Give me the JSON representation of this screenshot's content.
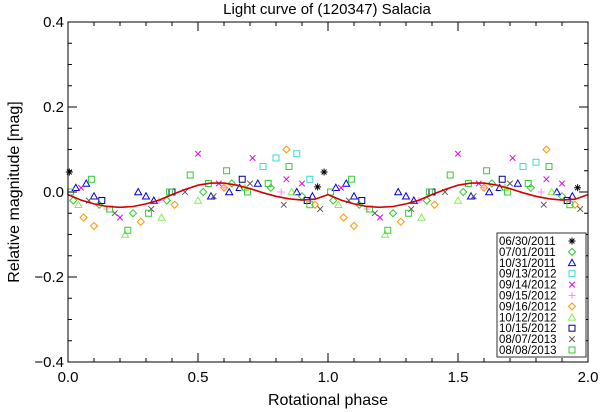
{
  "chart_data": {
    "type": "scatter",
    "title": "Light curve of (120347) Salacia",
    "xlabel": "Rotational phase",
    "ylabel": "Relative magnitude [mag]",
    "xlim": [
      0.0,
      2.0
    ],
    "ylim": [
      -0.4,
      0.4
    ],
    "x_ticks": [
      0.0,
      0.5,
      1.0,
      1.5,
      2.0
    ],
    "x_tick_labels": [
      "0.0",
      "0.5",
      "1.0",
      "1.5",
      "2.0"
    ],
    "y_ticks": [
      -0.4,
      -0.2,
      0.0,
      0.2,
      0.4
    ],
    "y_tick_labels": [
      "-0.4",
      "-0.2",
      "0.0",
      "0.2",
      "0.4"
    ],
    "y_inverted": false,
    "grid": false,
    "legend_position": "bottom-right",
    "fit_curve": {
      "name": "Fit",
      "color": "#d40000",
      "x": [
        0.0,
        0.05,
        0.1,
        0.15,
        0.2,
        0.25,
        0.3,
        0.35,
        0.4,
        0.45,
        0.5,
        0.55,
        0.6,
        0.65,
        0.7,
        0.75,
        0.8,
        0.85,
        0.9,
        0.95,
        1.0,
        1.05,
        1.1,
        1.15,
        1.2,
        1.25,
        1.3,
        1.35,
        1.4,
        1.45,
        1.5,
        1.55,
        1.6,
        1.65,
        1.7,
        1.75,
        1.8,
        1.85,
        1.9,
        1.95,
        2.0
      ],
      "y": [
        -0.006,
        -0.019,
        -0.028,
        -0.034,
        -0.036,
        -0.034,
        -0.028,
        -0.019,
        -0.006,
        0.006,
        0.016,
        0.021,
        0.021,
        0.016,
        0.008,
        -0.002,
        -0.01,
        -0.016,
        -0.019,
        -0.017,
        -0.006,
        -0.019,
        -0.028,
        -0.034,
        -0.036,
        -0.034,
        -0.028,
        -0.019,
        -0.006,
        0.006,
        0.016,
        0.021,
        0.021,
        0.016,
        0.008,
        -0.002,
        -0.01,
        -0.016,
        -0.019,
        -0.017,
        -0.006
      ]
    },
    "series": [
      {
        "name": "06/30/2011",
        "marker": "asterisk",
        "color": "#000000",
        "x": [
          0.005,
          0.96,
          0.985,
          1.96
        ],
        "y": [
          0.047,
          0.012,
          0.047,
          0.01
        ]
      },
      {
        "name": "07/01/2011",
        "marker": "diamond",
        "color": "#33cc33",
        "x": [
          0.02,
          0.12,
          0.25,
          0.38,
          0.52,
          0.63,
          0.78,
          0.9,
          1.02,
          1.12,
          1.25,
          1.38,
          1.52,
          1.63,
          1.78,
          1.9
        ],
        "y": [
          -0.02,
          -0.03,
          -0.05,
          -0.02,
          0.0,
          0.02,
          0.01,
          -0.01,
          -0.02,
          -0.03,
          -0.05,
          -0.02,
          0.0,
          0.02,
          0.01,
          -0.01
        ]
      },
      {
        "name": "10/31/2011",
        "marker": "triangle",
        "color": "#0000dd",
        "x": [
          0.03,
          0.07,
          0.1,
          0.27,
          0.3,
          0.33,
          0.55,
          0.62,
          0.66,
          0.73,
          0.88,
          0.94,
          1.03,
          1.07,
          1.1,
          1.27,
          1.3,
          1.33,
          1.55,
          1.62,
          1.66,
          1.73,
          1.88,
          1.94
        ],
        "y": [
          0.01,
          0.02,
          -0.01,
          0.0,
          -0.01,
          -0.02,
          -0.01,
          0.0,
          0.01,
          0.02,
          0.0,
          -0.01,
          0.01,
          0.02,
          -0.01,
          0.0,
          -0.01,
          -0.02,
          -0.01,
          0.0,
          0.01,
          0.02,
          0.0,
          -0.01
        ]
      },
      {
        "name": "09/13/2012",
        "marker": "square",
        "color": "#33dddd",
        "x": [
          0.75,
          0.8,
          0.88,
          0.93,
          1.75,
          1.8
        ],
        "y": [
          0.06,
          0.08,
          0.09,
          0.03,
          0.06,
          0.07
        ]
      },
      {
        "name": "09/14/2012",
        "marker": "x",
        "color": "#dd00dd",
        "x": [
          0.05,
          0.2,
          0.5,
          0.58,
          0.71,
          0.84,
          0.9,
          1.05,
          1.2,
          1.5,
          1.58,
          1.71,
          1.84,
          1.9
        ],
        "y": [
          0.01,
          -0.06,
          0.09,
          0.02,
          0.08,
          0.03,
          0.02,
          0.01,
          -0.06,
          0.09,
          0.02,
          0.08,
          0.03,
          0.02
        ]
      },
      {
        "name": "09/15/2012",
        "marker": "plus",
        "color": "#ff88ff",
        "x": [
          0.15,
          0.35,
          0.6,
          0.82,
          1.15,
          1.35,
          1.6,
          1.82
        ],
        "y": [
          -0.04,
          -0.02,
          0.01,
          0.0,
          -0.04,
          -0.02,
          0.01,
          0.0
        ]
      },
      {
        "name": "09/16/2012",
        "marker": "diamond",
        "color": "#ff9900",
        "x": [
          0.06,
          0.1,
          0.28,
          0.41,
          0.6,
          0.84,
          0.95,
          1.06,
          1.1,
          1.28,
          1.41,
          1.6,
          1.84,
          1.95
        ],
        "y": [
          -0.06,
          -0.08,
          -0.07,
          -0.03,
          0.01,
          0.1,
          -0.03,
          -0.06,
          -0.08,
          -0.07,
          -0.03,
          0.01,
          0.1,
          -0.03
        ]
      },
      {
        "name": "10/12/2012",
        "marker": "triangle",
        "color": "#88ee55",
        "x": [
          0.04,
          0.22,
          0.36,
          0.5,
          0.68,
          0.86,
          1.04,
          1.22,
          1.36,
          1.5,
          1.68,
          1.86
        ],
        "y": [
          -0.03,
          -0.1,
          -0.06,
          -0.02,
          0.01,
          0.0,
          -0.03,
          -0.1,
          -0.06,
          -0.02,
          0.01,
          0.0
        ]
      },
      {
        "name": "10/15/2012",
        "marker": "square",
        "color": "#000088",
        "x": [
          0.13,
          0.4,
          0.67,
          0.92,
          1.13,
          1.4,
          1.67,
          1.92
        ],
        "y": [
          -0.02,
          0.0,
          0.03,
          -0.02,
          -0.02,
          0.0,
          0.03,
          -0.02
        ]
      },
      {
        "name": "08/07/2013",
        "marker": "x",
        "color": "#555555",
        "x": [
          0.08,
          0.18,
          0.32,
          0.45,
          0.56,
          0.7,
          0.83,
          0.97,
          1.08,
          1.18,
          1.32,
          1.45,
          1.56,
          1.7,
          1.83,
          1.97
        ],
        "y": [
          -0.02,
          -0.05,
          -0.04,
          0.0,
          -0.01,
          0.02,
          -0.03,
          -0.04,
          -0.02,
          -0.05,
          -0.04,
          0.0,
          -0.01,
          0.02,
          -0.03,
          -0.04
        ]
      },
      {
        "name": "08/08/2013",
        "marker": "square",
        "color": "#33cc33",
        "x": [
          0.01,
          0.09,
          0.16,
          0.23,
          0.31,
          0.39,
          0.47,
          0.54,
          0.61,
          0.69,
          0.77,
          0.85,
          0.93,
          1.01,
          1.09,
          1.16,
          1.23,
          1.31,
          1.39,
          1.47,
          1.54,
          1.61,
          1.69,
          1.77,
          1.85,
          1.93
        ],
        "y": [
          0.0,
          0.03,
          -0.04,
          -0.09,
          -0.05,
          0.0,
          0.04,
          0.02,
          0.05,
          0.0,
          0.02,
          0.06,
          -0.03,
          0.0,
          0.03,
          -0.04,
          -0.09,
          -0.05,
          0.0,
          0.04,
          0.02,
          0.05,
          0.0,
          0.02,
          0.06,
          -0.03
        ]
      }
    ]
  }
}
